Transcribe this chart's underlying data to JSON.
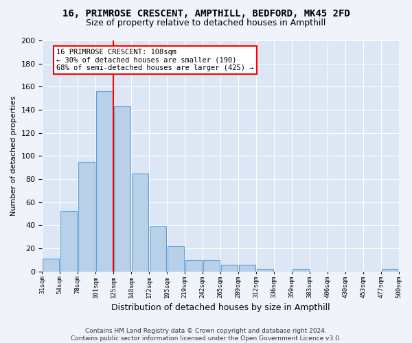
{
  "title": "16, PRIMROSE CRESCENT, AMPTHILL, BEDFORD, MK45 2FD",
  "subtitle": "Size of property relative to detached houses in Ampthill",
  "xlabel": "Distribution of detached houses by size in Ampthill",
  "ylabel": "Number of detached properties",
  "footer_line1": "Contains HM Land Registry data © Crown copyright and database right 2024.",
  "footer_line2": "Contains public sector information licensed under the Open Government Licence v3.0.",
  "bin_labels": [
    "31sqm",
    "54sqm",
    "78sqm",
    "101sqm",
    "125sqm",
    "148sqm",
    "172sqm",
    "195sqm",
    "219sqm",
    "242sqm",
    "265sqm",
    "289sqm",
    "312sqm",
    "336sqm",
    "359sqm",
    "383sqm",
    "406sqm",
    "430sqm",
    "453sqm",
    "477sqm",
    "500sqm"
  ],
  "values": [
    11,
    52,
    95,
    156,
    143,
    85,
    39,
    22,
    10,
    10,
    6,
    6,
    2,
    0,
    2,
    0,
    0,
    0,
    0,
    2
  ],
  "bar_color": "#b8d0e8",
  "bar_edge_color": "#5a9fd4",
  "red_line_x": 3.5,
  "annotation_text": "16 PRIMROSE CRESCENT: 108sqm\n← 30% of detached houses are smaller (190)\n68% of semi-detached houses are larger (425) →",
  "ylim": [
    0,
    200
  ],
  "yticks": [
    0,
    20,
    40,
    60,
    80,
    100,
    120,
    140,
    160,
    180,
    200
  ],
  "fig_bg_color": "#f0f4fa",
  "ax_bg_color": "#dce6f5",
  "grid_color": "#ffffff",
  "title_fontsize": 10,
  "subtitle_fontsize": 9
}
